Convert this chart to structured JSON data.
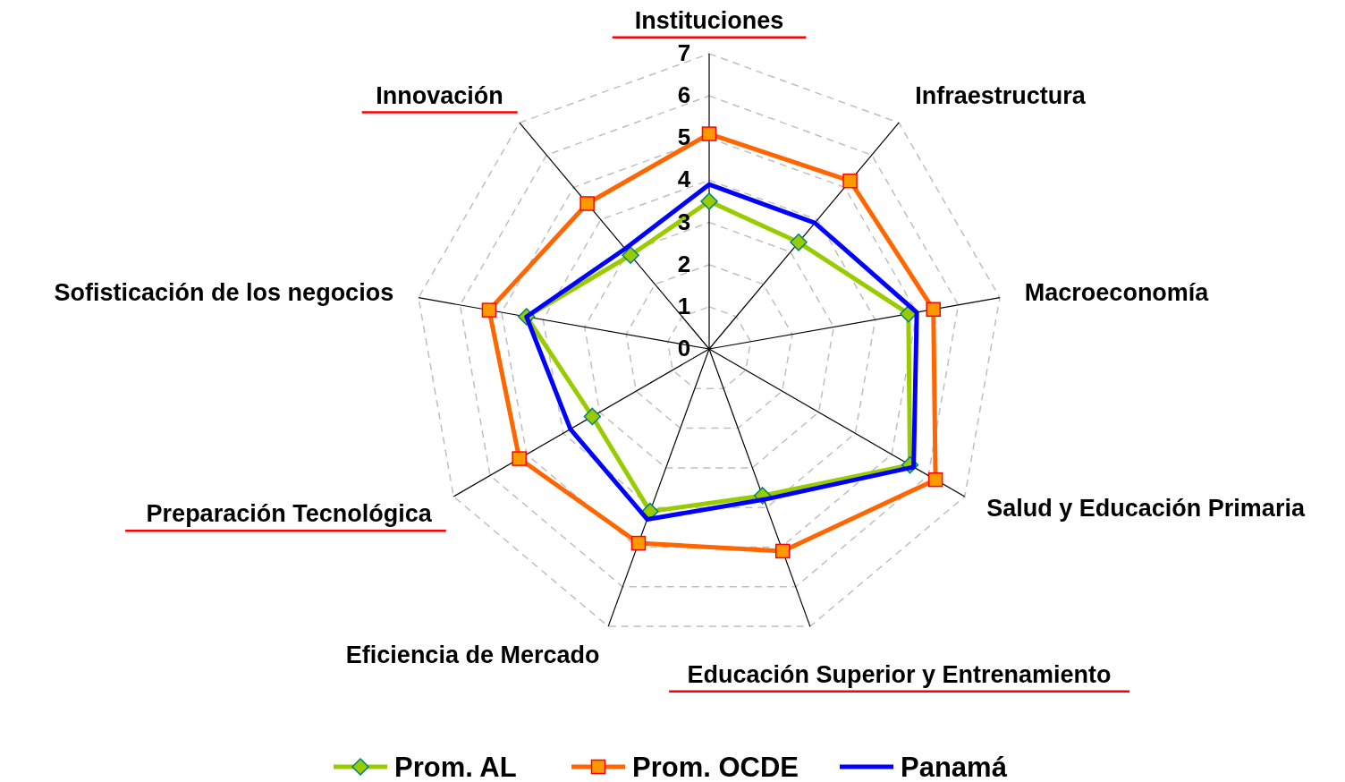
{
  "chart_data": {
    "type": "radar",
    "categories": [
      "Instituciones",
      "Infraestructura",
      "Macroeconomía",
      "Salud y Educación Primaria",
      "Educación Superior y Entrenamiento",
      "Eficiencia de Mercado",
      "Preparación Tecnológica",
      "Sofisticación de los negocios",
      "Innovación"
    ],
    "series": [
      {
        "name": "Prom. AL",
        "color": "#99cc00",
        "marker": "diamond",
        "values": [
          3.5,
          3.3,
          4.8,
          5.5,
          3.7,
          4.1,
          3.2,
          4.4,
          2.9
        ]
      },
      {
        "name": "Prom. OCDE",
        "color": "#ff6600",
        "marker": "square",
        "values": [
          5.1,
          5.2,
          5.4,
          6.2,
          5.1,
          4.9,
          5.2,
          5.3,
          4.5
        ]
      },
      {
        "name": "Panamá",
        "color": "#0000ff",
        "marker": "none",
        "values": [
          3.9,
          3.9,
          5.0,
          5.6,
          3.8,
          4.3,
          3.8,
          4.4,
          3.1
        ]
      }
    ],
    "ylim": [
      0,
      7
    ],
    "yticks": [
      0,
      1,
      2,
      3,
      4,
      5,
      6,
      7
    ],
    "grid": true,
    "legend": "bottom"
  }
}
